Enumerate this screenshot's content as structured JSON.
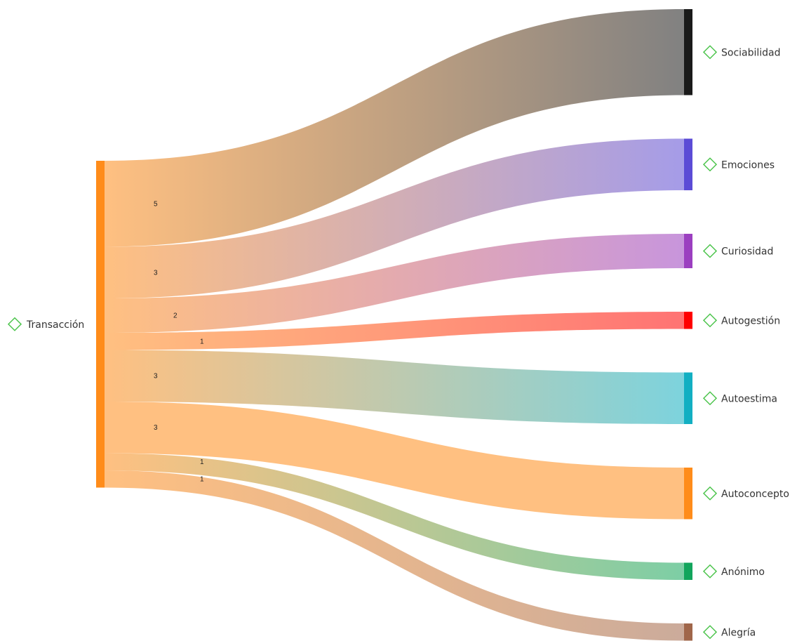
{
  "chart_data": {
    "type": "sankey",
    "source": {
      "label": "Transacción",
      "color": "#FF8C1A"
    },
    "targets": [
      {
        "label": "Sociabilidad",
        "value": 5,
        "color": "#1A1A1A"
      },
      {
        "label": "Emociones",
        "value": 3,
        "color": "#5B4BD6"
      },
      {
        "label": "Curiosidad",
        "value": 2,
        "color": "#9B3FC0"
      },
      {
        "label": "Autogestión",
        "value": 1,
        "color": "#FF0000"
      },
      {
        "label": "Autoestima",
        "value": 3,
        "color": "#12AFC2"
      },
      {
        "label": "Autoconcepto",
        "value": 3,
        "color": "#FF8C1A"
      },
      {
        "label": "Anónimo",
        "value": 1,
        "color": "#12A55C"
      },
      {
        "label": "Alegría",
        "value": 1,
        "color": "#A0664A"
      }
    ],
    "marker_icon": "diamond-outline-icon",
    "marker_color": "#4CC44C"
  }
}
